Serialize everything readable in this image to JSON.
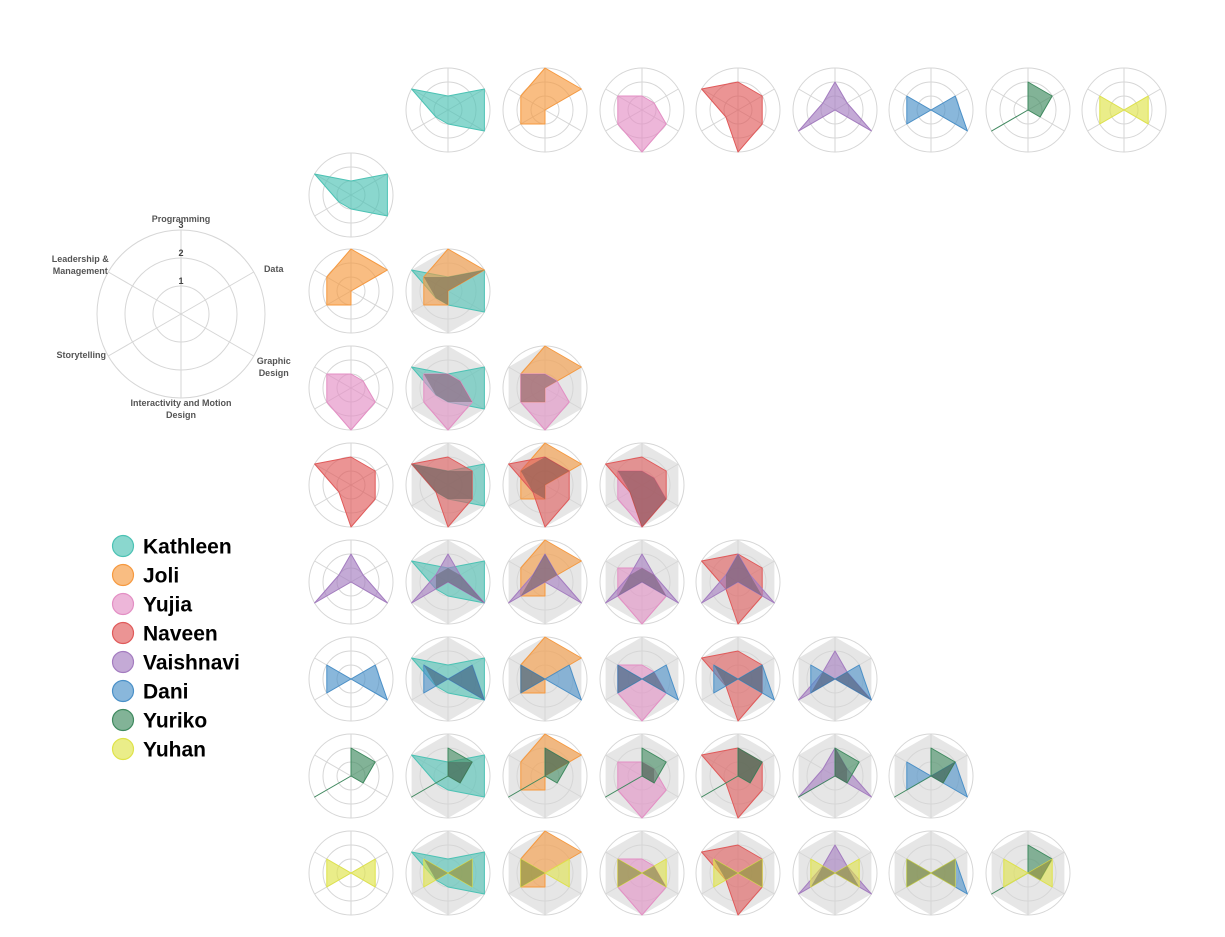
{
  "chart_data": {
    "type": "radar",
    "axes": [
      "Programming",
      "Data",
      "Graphic Design",
      "Interactivity and Motion Design",
      "Storytelling",
      "Leadership & Management"
    ],
    "axis_label_lines": [
      [
        "Programming"
      ],
      [
        "Data"
      ],
      [
        "Graphic",
        "Design"
      ],
      [
        "Interactivity and Motion",
        "Design"
      ],
      [
        "Storytelling"
      ],
      [
        "Leadership &",
        "Management"
      ]
    ],
    "rmax": 3,
    "ticks": [
      "1",
      "2",
      "3"
    ],
    "series": [
      {
        "name": "Kathleen",
        "color": "#4cc2b4",
        "values": [
          1,
          3,
          3,
          1,
          1,
          3
        ]
      },
      {
        "name": "Joli",
        "color": "#f6993f",
        "values": [
          3,
          3,
          0,
          1,
          2,
          2
        ]
      },
      {
        "name": "Yujia",
        "color": "#e38fc4",
        "values": [
          1,
          1,
          2,
          3,
          2,
          2
        ]
      },
      {
        "name": "Naveen",
        "color": "#e05a5a",
        "values": [
          2,
          2,
          2,
          3,
          1,
          3
        ]
      },
      {
        "name": "Vaishnavi",
        "color": "#a47cc0",
        "values": [
          2,
          1,
          3,
          0,
          3,
          1
        ]
      },
      {
        "name": "Dani",
        "color": "#4a90c8",
        "values": [
          0,
          2,
          3,
          0,
          2,
          2
        ]
      },
      {
        "name": "Yuriko",
        "color": "#3f8a5f",
        "values": [
          2,
          2,
          1,
          0,
          3,
          0
        ]
      },
      {
        "name": "Yuhan",
        "color": "#dfe34a",
        "values": [
          0,
          2,
          2,
          0,
          2,
          2
        ]
      }
    ],
    "legend_position": "left",
    "layout": "pairwise lower-triangle matrix of overlaid radar charts"
  }
}
